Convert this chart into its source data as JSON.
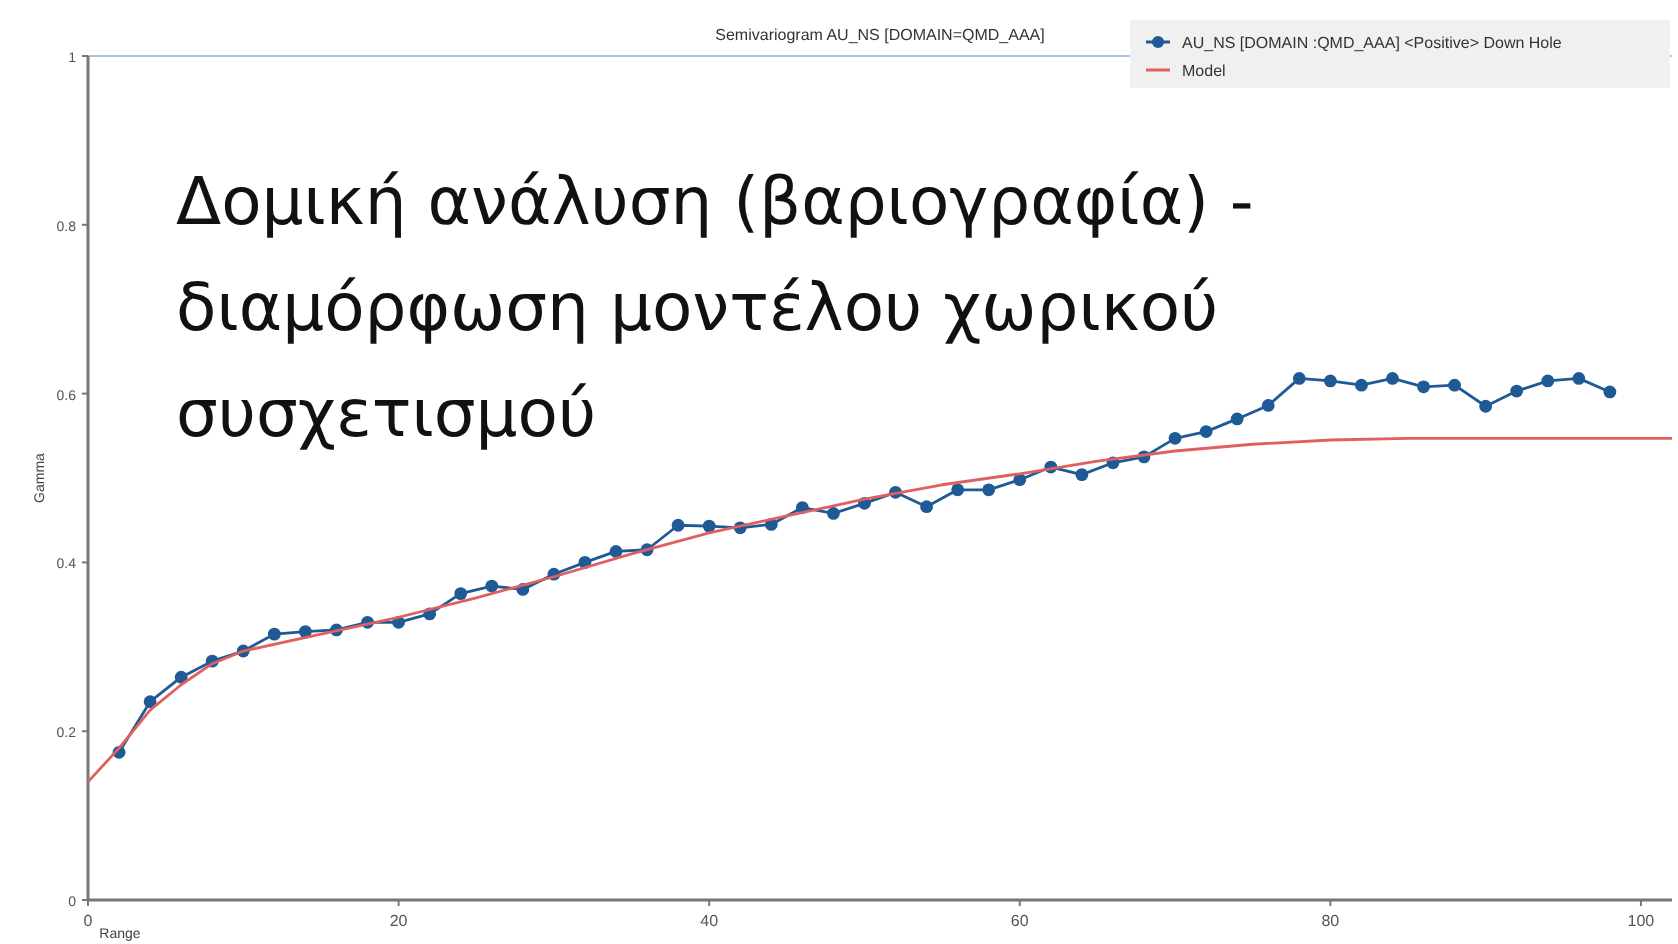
{
  "chart_data": {
    "type": "line",
    "title": "Semivariogram AU_NS [DOMAIN=QMD_AAA]",
    "xlabel": "Range",
    "ylabel": "Gamma",
    "annotations": [
      "Δομική ανάλυση (βαριογραφία) - διαμόρφωση μοντέλου χωρικού συσχετισμού"
    ],
    "xlim": [
      0,
      102
    ],
    "xticks": [
      0,
      20,
      40,
      60,
      80,
      100
    ],
    "ylim": [
      0,
      1
    ],
    "yticks": [
      0,
      0.2,
      0.4,
      0.6,
      0.8,
      1
    ],
    "grid": false,
    "legend": "top right",
    "series": [
      {
        "name": "AU_NS [DOMAIN :QMD_AAA] <Positive> Down Hole",
        "color": "#1f5a96",
        "marker": "circle",
        "x": [
          2,
          4,
          6,
          8,
          10,
          12,
          14,
          16,
          18,
          20,
          22,
          24,
          26,
          28,
          30,
          32,
          34,
          36,
          38,
          40,
          42,
          44,
          46,
          48,
          50,
          52,
          54,
          56,
          58,
          60,
          62,
          64,
          66,
          68,
          70,
          72,
          74,
          76,
          78,
          80,
          82,
          84,
          86,
          88,
          90,
          92,
          94,
          96,
          98
        ],
        "values": [
          0.175,
          0.235,
          0.264,
          0.283,
          0.295,
          0.315,
          0.318,
          0.32,
          0.329,
          0.329,
          0.339,
          0.363,
          0.372,
          0.368,
          0.386,
          0.4,
          0.413,
          0.415,
          0.444,
          0.443,
          0.441,
          0.445,
          0.465,
          0.458,
          0.47,
          0.483,
          0.466,
          0.486,
          0.486,
          0.498,
          0.513,
          0.504,
          0.518,
          0.525,
          0.547,
          0.555,
          0.57,
          0.586,
          0.618,
          0.615,
          0.61,
          0.618,
          0.608,
          0.61,
          0.585,
          0.603,
          0.615,
          0.618,
          0.602
        ]
      },
      {
        "name": "Model",
        "color": "#e06060",
        "marker": "none",
        "x": [
          0,
          2,
          4,
          6,
          8,
          10,
          15,
          20,
          25,
          30,
          35,
          40,
          45,
          50,
          55,
          60,
          65,
          70,
          75,
          80,
          85,
          90,
          102
        ],
        "values": [
          0.14,
          0.18,
          0.225,
          0.255,
          0.28,
          0.295,
          0.315,
          0.335,
          0.358,
          0.383,
          0.41,
          0.435,
          0.455,
          0.475,
          0.492,
          0.505,
          0.52,
          0.532,
          0.54,
          0.545,
          0.547,
          0.547,
          0.547
        ]
      }
    ]
  }
}
